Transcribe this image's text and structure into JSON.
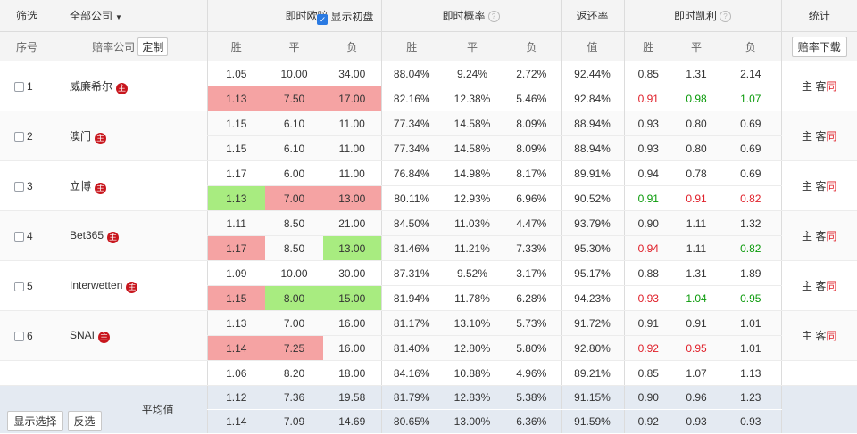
{
  "header": {
    "filter": "筛选",
    "all_companies": "全部公司",
    "europe_odds": "即时欧赔",
    "show_initial": "显示初盘",
    "probability": "即时概率",
    "return_rate": "返还率",
    "kelly": "即时凯利",
    "stats": "统计"
  },
  "subheader": {
    "index": "序号",
    "company": "赔率公司",
    "customize": "定制",
    "win": "胜",
    "draw": "平",
    "loss": "负",
    "value": "值",
    "download": "赔率下载"
  },
  "companies": [
    {
      "idx": "1",
      "name": "威廉希尔",
      "badge": "主",
      "home": "主",
      "away": "客",
      "same": "同",
      "rows": [
        [
          "1.05",
          "10.00",
          "34.00",
          "88.04%",
          "9.24%",
          "2.72%",
          "92.44%",
          "0.85",
          "1.31",
          "2.14"
        ],
        [
          "1.13",
          "7.50",
          "17.00",
          "82.16%",
          "12.38%",
          "5.46%",
          "92.84%",
          "0.91",
          "0.98",
          "1.07"
        ]
      ]
    },
    {
      "idx": "2",
      "name": "澳门",
      "badge": "主",
      "home": "主",
      "away": "客",
      "same": "同",
      "rows": [
        [
          "1.15",
          "6.10",
          "11.00",
          "77.34%",
          "14.58%",
          "8.09%",
          "88.94%",
          "0.93",
          "0.80",
          "0.69"
        ],
        [
          "1.15",
          "6.10",
          "11.00",
          "77.34%",
          "14.58%",
          "8.09%",
          "88.94%",
          "0.93",
          "0.80",
          "0.69"
        ]
      ]
    },
    {
      "idx": "3",
      "name": "立博",
      "badge": "主",
      "home": "主",
      "away": "客",
      "same": "同",
      "rows": [
        [
          "1.17",
          "6.00",
          "11.00",
          "76.84%",
          "14.98%",
          "8.17%",
          "89.91%",
          "0.94",
          "0.78",
          "0.69"
        ],
        [
          "1.13",
          "7.00",
          "13.00",
          "80.11%",
          "12.93%",
          "6.96%",
          "90.52%",
          "0.91",
          "0.91",
          "0.82"
        ]
      ]
    },
    {
      "idx": "4",
      "name": "Bet365",
      "badge": "主",
      "home": "主",
      "away": "客",
      "same": "同",
      "rows": [
        [
          "1.11",
          "8.50",
          "21.00",
          "84.50%",
          "11.03%",
          "4.47%",
          "93.79%",
          "0.90",
          "1.11",
          "1.32"
        ],
        [
          "1.17",
          "8.50",
          "13.00",
          "81.46%",
          "11.21%",
          "7.33%",
          "95.30%",
          "0.94",
          "1.11",
          "0.82"
        ]
      ]
    },
    {
      "idx": "5",
      "name": "Interwetten",
      "badge": "主",
      "home": "主",
      "away": "客",
      "same": "同",
      "rows": [
        [
          "1.09",
          "10.00",
          "30.00",
          "87.31%",
          "9.52%",
          "3.17%",
          "95.17%",
          "0.88",
          "1.31",
          "1.89"
        ],
        [
          "1.15",
          "8.00",
          "15.00",
          "81.94%",
          "11.78%",
          "6.28%",
          "94.23%",
          "0.93",
          "1.04",
          "0.95"
        ]
      ]
    },
    {
      "idx": "6",
      "name": "SNAI",
      "badge": "主",
      "home": "主",
      "away": "客",
      "same": "同",
      "rows": [
        [
          "1.13",
          "7.00",
          "16.00",
          "81.17%",
          "13.10%",
          "5.73%",
          "91.72%",
          "0.91",
          "0.91",
          "1.01"
        ],
        [
          "1.14",
          "7.25",
          "16.00",
          "81.40%",
          "12.80%",
          "5.80%",
          "92.80%",
          "0.92",
          "0.95",
          "1.01"
        ]
      ]
    }
  ],
  "partial_row": [
    "1.06",
    "8.20",
    "18.00",
    "84.16%",
    "10.88%",
    "4.96%",
    "89.21%",
    "0.85",
    "1.07",
    "1.13"
  ],
  "average": {
    "label": "平均值",
    "show_selected": "显示选择",
    "invert": "反选",
    "rows": [
      [
        "1.12",
        "7.36",
        "19.58",
        "81.79%",
        "12.83%",
        "5.38%",
        "91.15%",
        "0.90",
        "0.96",
        "1.23"
      ],
      [
        "1.14",
        "7.09",
        "14.69",
        "80.65%",
        "13.00%",
        "6.36%",
        "91.59%",
        "0.92",
        "0.93",
        "0.93"
      ]
    ]
  },
  "colors": {
    "cell_red": "#f5a3a3",
    "cell_green": "#a8ec80",
    "text_red": "#e0202a",
    "text_green": "#0a9a0a",
    "average_bg": "#e4eaf2"
  }
}
